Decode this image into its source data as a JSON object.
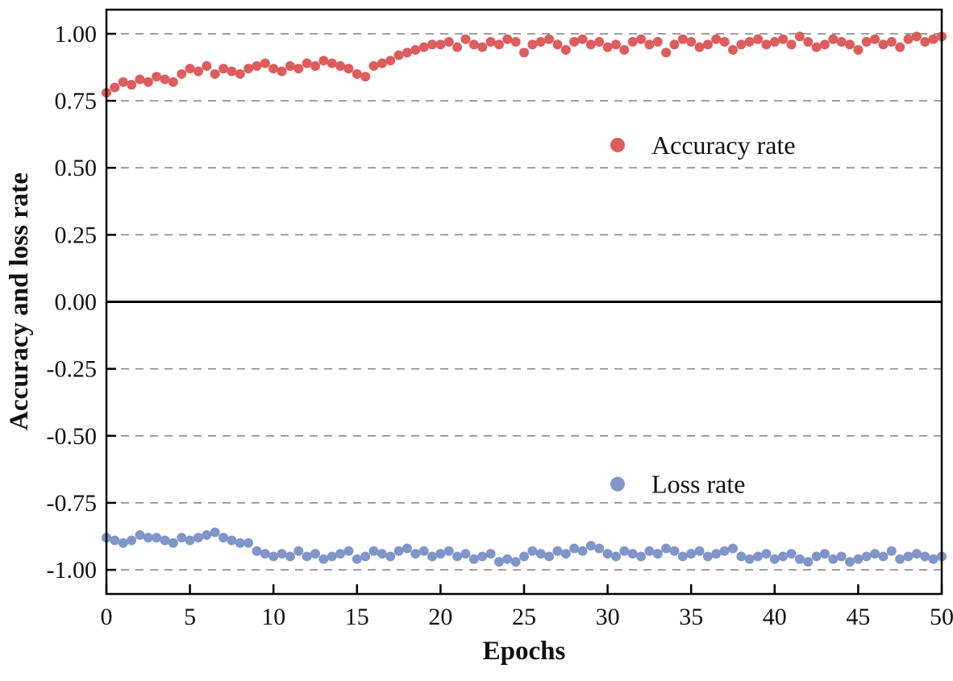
{
  "chart_data": {
    "type": "scatter",
    "title": "",
    "xlabel": "Epochs",
    "ylabel": "Accuracy and loss rate",
    "xlim": [
      0,
      50
    ],
    "ylim": [
      -1.09,
      1.09
    ],
    "grid": "dashed horizontal at every 0.25, solid black line at 0.00",
    "legend_position": "inside plot, right-center (Accuracy rate upper, Loss rate lower)",
    "x_ticks": [
      0,
      5,
      10,
      15,
      20,
      25,
      30,
      35,
      40,
      45,
      50
    ],
    "y_ticks": [
      {
        "value": 1.0,
        "label": "1.00"
      },
      {
        "value": 0.75,
        "label": "0.75"
      },
      {
        "value": 0.5,
        "label": "0.50"
      },
      {
        "value": 0.25,
        "label": "0.25"
      },
      {
        "value": 0.0,
        "label": "0.00"
      },
      {
        "value": -0.25,
        "label": "-0.25"
      },
      {
        "value": -0.5,
        "label": "-0.50"
      },
      {
        "value": -0.75,
        "label": "-0.75"
      },
      {
        "value": -1.0,
        "label": "-1.00"
      }
    ],
    "x_start": 0,
    "x_step": 0.5,
    "series": [
      {
        "name": "Accuracy rate",
        "color": "#dd5c5c",
        "values": [
          0.78,
          0.8,
          0.82,
          0.81,
          0.83,
          0.82,
          0.84,
          0.83,
          0.82,
          0.85,
          0.87,
          0.86,
          0.88,
          0.85,
          0.87,
          0.86,
          0.85,
          0.87,
          0.88,
          0.89,
          0.87,
          0.86,
          0.88,
          0.87,
          0.89,
          0.88,
          0.9,
          0.89,
          0.88,
          0.87,
          0.85,
          0.84,
          0.88,
          0.89,
          0.9,
          0.92,
          0.93,
          0.94,
          0.95,
          0.96,
          0.96,
          0.97,
          0.95,
          0.98,
          0.96,
          0.95,
          0.97,
          0.96,
          0.98,
          0.97,
          0.93,
          0.96,
          0.97,
          0.98,
          0.96,
          0.94,
          0.97,
          0.98,
          0.96,
          0.97,
          0.95,
          0.96,
          0.94,
          0.97,
          0.98,
          0.96,
          0.97,
          0.93,
          0.96,
          0.98,
          0.97,
          0.95,
          0.96,
          0.98,
          0.97,
          0.94,
          0.96,
          0.97,
          0.98,
          0.96,
          0.97,
          0.98,
          0.96,
          0.99,
          0.97,
          0.95,
          0.96,
          0.98,
          0.97,
          0.96,
          0.94,
          0.97,
          0.98,
          0.96,
          0.97,
          0.95,
          0.98,
          0.99,
          0.97,
          0.98,
          0.99
        ]
      },
      {
        "name": "Loss rate",
        "color": "#8096c8",
        "values": [
          -0.88,
          -0.89,
          -0.9,
          -0.89,
          -0.87,
          -0.88,
          -0.88,
          -0.89,
          -0.9,
          -0.88,
          -0.89,
          -0.88,
          -0.87,
          -0.86,
          -0.88,
          -0.89,
          -0.9,
          -0.9,
          -0.93,
          -0.94,
          -0.95,
          -0.94,
          -0.95,
          -0.93,
          -0.95,
          -0.94,
          -0.96,
          -0.95,
          -0.94,
          -0.93,
          -0.96,
          -0.95,
          -0.93,
          -0.94,
          -0.95,
          -0.93,
          -0.92,
          -0.94,
          -0.93,
          -0.95,
          -0.94,
          -0.93,
          -0.95,
          -0.94,
          -0.96,
          -0.95,
          -0.94,
          -0.97,
          -0.96,
          -0.97,
          -0.95,
          -0.93,
          -0.94,
          -0.95,
          -0.93,
          -0.94,
          -0.92,
          -0.93,
          -0.91,
          -0.92,
          -0.94,
          -0.95,
          -0.93,
          -0.94,
          -0.95,
          -0.93,
          -0.94,
          -0.92,
          -0.93,
          -0.95,
          -0.94,
          -0.93,
          -0.95,
          -0.94,
          -0.93,
          -0.92,
          -0.95,
          -0.96,
          -0.95,
          -0.94,
          -0.96,
          -0.95,
          -0.94,
          -0.96,
          -0.97,
          -0.95,
          -0.94,
          -0.96,
          -0.95,
          -0.97,
          -0.96,
          -0.95,
          -0.94,
          -0.95,
          -0.93,
          -0.96,
          -0.95,
          -0.94,
          -0.95,
          -0.96,
          -0.95
        ]
      }
    ],
    "legend": [
      {
        "label": "Accuracy rate",
        "color": "#dd5c5c"
      },
      {
        "label": "Loss rate",
        "color": "#8096c8"
      }
    ],
    "colors": {
      "accuracy": "#dd5c5c",
      "loss": "#8096c8",
      "grid": "#8a8a8a",
      "zero_line": "#000000",
      "frame": "#000000"
    }
  }
}
